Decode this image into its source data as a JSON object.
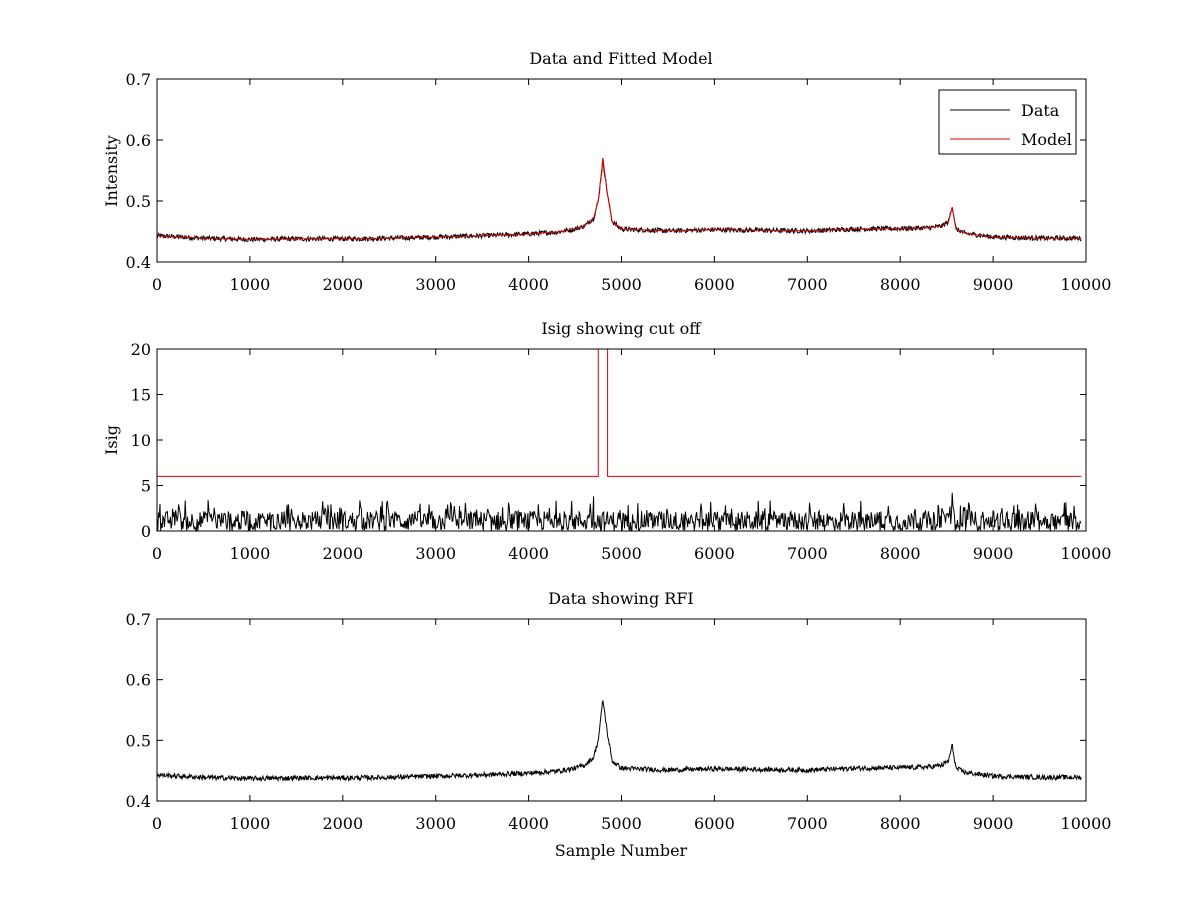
{
  "chart_data": [
    {
      "type": "line",
      "title": "Data and Fitted Model",
      "xlabel": "",
      "ylabel": "Intensity",
      "xlim": [
        0,
        10000
      ],
      "ylim": [
        0.4,
        0.7
      ],
      "xticks": [
        0,
        1000,
        2000,
        3000,
        4000,
        5000,
        6000,
        7000,
        8000,
        9000,
        10000
      ],
      "yticks": [
        0.4,
        0.5,
        0.6,
        0.7
      ],
      "ytick_labels": [
        "0.4",
        "0.5",
        "0.6",
        "0.7"
      ],
      "legend": {
        "position": "top-right",
        "entries": [
          "Data",
          "Model"
        ]
      },
      "series": [
        {
          "name": "Data",
          "color": "#000000",
          "x": [
            0,
            500,
            1000,
            1500,
            2000,
            2500,
            3000,
            3500,
            4000,
            4300,
            4500,
            4600,
            4700,
            4750,
            4800,
            4850,
            4900,
            5000,
            5500,
            6000,
            6500,
            7000,
            7500,
            8000,
            8300,
            8450,
            8520,
            8560,
            8600,
            8700,
            9000,
            9500,
            9950
          ],
          "y": [
            0.443,
            0.439,
            0.437,
            0.438,
            0.438,
            0.439,
            0.441,
            0.443,
            0.446,
            0.449,
            0.454,
            0.459,
            0.472,
            0.5,
            0.567,
            0.51,
            0.466,
            0.454,
            0.451,
            0.453,
            0.452,
            0.451,
            0.454,
            0.455,
            0.456,
            0.459,
            0.466,
            0.492,
            0.454,
            0.447,
            0.441,
            0.439,
            0.439
          ],
          "noise_amplitude": 0.004
        },
        {
          "name": "Model",
          "color": "#e00000",
          "x": [
            0,
            500,
            1000,
            1500,
            2000,
            2500,
            3000,
            3500,
            4000,
            4300,
            4500,
            4600,
            4700,
            4750,
            4800,
            4850,
            4900,
            5000,
            5500,
            6000,
            6500,
            7000,
            7500,
            8000,
            8300,
            8450,
            8520,
            8560,
            8600,
            8700,
            9000,
            9500,
            9950
          ],
          "y": [
            0.443,
            0.439,
            0.437,
            0.438,
            0.438,
            0.439,
            0.441,
            0.443,
            0.446,
            0.449,
            0.454,
            0.459,
            0.472,
            0.5,
            0.57,
            0.51,
            0.466,
            0.454,
            0.451,
            0.453,
            0.452,
            0.451,
            0.454,
            0.455,
            0.456,
            0.459,
            0.466,
            0.49,
            0.454,
            0.447,
            0.441,
            0.439,
            0.439
          ],
          "noise_amplitude": 0
        }
      ]
    },
    {
      "type": "line",
      "title": "Isig showing cut off",
      "xlabel": "",
      "ylabel": "Isig",
      "xlim": [
        0,
        10000
      ],
      "ylim": [
        0,
        20
      ],
      "xticks": [
        0,
        1000,
        2000,
        3000,
        4000,
        5000,
        6000,
        7000,
        8000,
        9000,
        10000
      ],
      "yticks": [
        0,
        5,
        10,
        15,
        20
      ],
      "ytick_labels": [
        "0",
        "5",
        "10",
        "15",
        "20"
      ],
      "series": [
        {
          "name": "Isig",
          "color": "#000000",
          "baseline_range": [
            0,
            2.2
          ],
          "spikes": [
            {
              "x": 8560,
              "y": 4.2
            },
            {
              "x": 4700,
              "y": 3.8
            },
            {
              "x": 550,
              "y": 3.4
            }
          ],
          "x_end": 9950
        },
        {
          "name": "Cut off",
          "color": "#e00000",
          "x": [
            0,
            4750,
            4750,
            4760,
            4760,
            4850,
            4850,
            9950
          ],
          "y": [
            6,
            6,
            20,
            20,
            20,
            20,
            6,
            6
          ]
        }
      ]
    },
    {
      "type": "line",
      "title": "Data showing RFI",
      "xlabel": "Sample Number",
      "ylabel": "",
      "xlim": [
        0,
        10000
      ],
      "ylim": [
        0.4,
        0.7
      ],
      "xticks": [
        0,
        1000,
        2000,
        3000,
        4000,
        5000,
        6000,
        7000,
        8000,
        9000,
        10000
      ],
      "yticks": [
        0.4,
        0.5,
        0.6,
        0.7
      ],
      "ytick_labels": [
        "0.4",
        "0.5",
        "0.6",
        "0.7"
      ],
      "series": [
        {
          "name": "Data",
          "color": "#000000",
          "x": [
            0,
            500,
            1000,
            1500,
            2000,
            2500,
            3000,
            3500,
            4000,
            4300,
            4500,
            4600,
            4700,
            4750,
            4800,
            4850,
            4900,
            5000,
            5500,
            6000,
            6500,
            7000,
            7500,
            8000,
            8300,
            8450,
            8520,
            8560,
            8600,
            8700,
            9000,
            9500,
            9950
          ],
          "y": [
            0.443,
            0.439,
            0.437,
            0.438,
            0.438,
            0.439,
            0.441,
            0.443,
            0.446,
            0.449,
            0.454,
            0.459,
            0.472,
            0.5,
            0.567,
            0.51,
            0.466,
            0.454,
            0.451,
            0.453,
            0.452,
            0.451,
            0.454,
            0.455,
            0.456,
            0.459,
            0.466,
            0.492,
            0.454,
            0.447,
            0.441,
            0.439,
            0.439
          ],
          "noise_amplitude": 0.004
        }
      ]
    }
  ]
}
